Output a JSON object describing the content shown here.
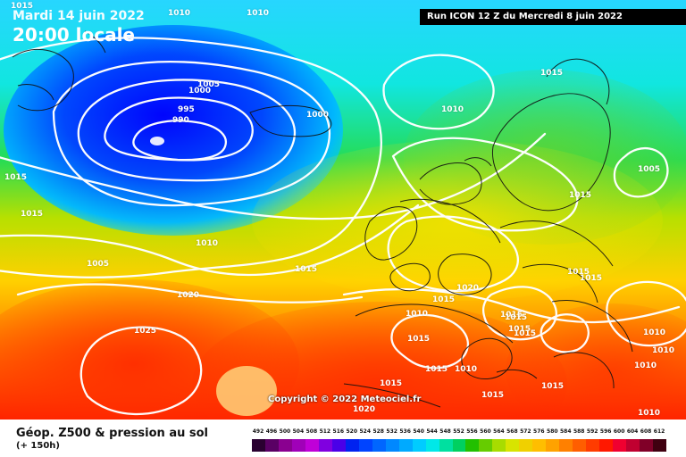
{
  "header": {
    "date": "Mardi 14 juin 2022",
    "time": "20:00 locale",
    "run_info": "Run ICON 12 Z du Mercredi 8 juin 2022",
    "copyright": "Copyright © 2022 Meteociel.fr"
  },
  "legend": {
    "title": "Géop. Z500 & pression au sol",
    "subtitle": "(+ 150h)",
    "scale_values": [
      "492",
      "496",
      "500",
      "504",
      "508",
      "512",
      "516",
      "520",
      "524",
      "528",
      "532",
      "536",
      "540",
      "544",
      "548",
      "552",
      "556",
      "560",
      "564",
      "568",
      "572",
      "576",
      "580",
      "584",
      "588",
      "592",
      "596",
      "600",
      "604",
      "608",
      "612"
    ],
    "scale_colors": [
      "#2a0030",
      "#5a0064",
      "#8a0090",
      "#a000b8",
      "#c000d8",
      "#8000e0",
      "#4a00e8",
      "#0022f0",
      "#0044ff",
      "#0066ff",
      "#0088ff",
      "#00aaff",
      "#00ccff",
      "#00e8e8",
      "#00e0a0",
      "#00d060",
      "#22c000",
      "#66cc00",
      "#a8dc00",
      "#d8e400",
      "#f0d000",
      "#ffbe00",
      "#ffa200",
      "#ff8000",
      "#ff5e00",
      "#ff3c00",
      "#ff1800",
      "#f00030",
      "#c00030",
      "#800028",
      "#400010"
    ]
  },
  "isobars": [
    {
      "label": "1015",
      "id": "isobar-1015-a"
    },
    {
      "label": "1010",
      "id": "isobar-1010-a"
    },
    {
      "label": "1010",
      "id": "isobar-1010-b"
    },
    {
      "label": "1005",
      "id": "isobar-1005-a"
    },
    {
      "label": "995",
      "id": "isobar-995"
    },
    {
      "label": "990",
      "id": "isobar-990"
    },
    {
      "label": "1000",
      "id": "isobar-1000-a"
    },
    {
      "label": "1000",
      "id": "isobar-1000-b"
    },
    {
      "label": "1015",
      "id": "isobar-1015-b"
    },
    {
      "label": "1010",
      "id": "isobar-1010-c"
    },
    {
      "label": "1015",
      "id": "isobar-1015-c"
    },
    {
      "label": "1015",
      "id": "isobar-1015-d"
    },
    {
      "label": "1010",
      "id": "isobar-1010-d"
    },
    {
      "label": "1005",
      "id": "isobar-1005-b"
    },
    {
      "label": "1015",
      "id": "isobar-1015-e"
    },
    {
      "label": "1020",
      "id": "isobar-1020-a"
    },
    {
      "label": "1025",
      "id": "isobar-1025"
    },
    {
      "label": "1005",
      "id": "isobar-1005-c"
    },
    {
      "label": "1015",
      "id": "isobar-1015-f"
    },
    {
      "label": "1015",
      "id": "isobar-1015-g"
    },
    {
      "label": "1015",
      "id": "isobar-1015-h"
    },
    {
      "label": "1020",
      "id": "isobar-1020-b"
    },
    {
      "label": "1015",
      "id": "isobar-1015-i"
    },
    {
      "label": "1015",
      "id": "isobar-1015-j"
    },
    {
      "label": "1010",
      "id": "isobar-1010-e"
    },
    {
      "label": "1015",
      "id": "isobar-1015-k"
    },
    {
      "label": "1015",
      "id": "isobar-1015-l"
    },
    {
      "label": "1015",
      "id": "isobar-1015-m"
    },
    {
      "label": "1015",
      "id": "isobar-1015-n"
    },
    {
      "label": "1015",
      "id": "isobar-1015-o"
    },
    {
      "label": "1015",
      "id": "isobar-1015-p"
    },
    {
      "label": "1010",
      "id": "isobar-1010-f"
    },
    {
      "label": "1010",
      "id": "isobar-1010-g"
    },
    {
      "label": "1010",
      "id": "isobar-1010-h"
    },
    {
      "label": "1010",
      "id": "isobar-1010-i"
    },
    {
      "label": "1020",
      "id": "isobar-1020-c"
    },
    {
      "label": "1010",
      "id": "isobar-1010-j"
    },
    {
      "label": "1015",
      "id": "isobar-1015-q"
    },
    {
      "label": "1015",
      "id": "isobar-1015-r"
    }
  ]
}
